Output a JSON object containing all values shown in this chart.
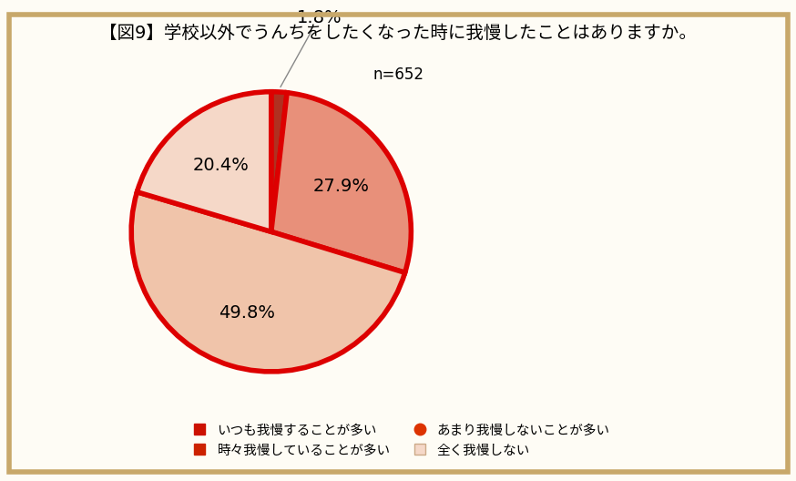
{
  "title_line1": "【図9】学校以外でうんちをしたくなった時に我慢したことはありますか。",
  "title_line2": "n=652",
  "slices": [
    1.8,
    27.9,
    49.8,
    20.4
  ],
  "slice_labels": [
    "1.8%",
    "27.9%",
    "49.8%",
    "20.4%"
  ],
  "colors": [
    "#b03020",
    "#e8907a",
    "#f0c4aa",
    "#f5d8c8"
  ],
  "edge_color": "#dd0000",
  "edge_width": 4.0,
  "legend_labels": [
    "いつも我慢することが多い",
    "時々我慢していることが多い",
    "あまり我慢しないことが多い",
    "全く我慢しない"
  ],
  "legend_colors": [
    "#cc1100",
    "#cc2200",
    "#dd3300",
    "#f5d8c8"
  ],
  "background_color": "#fefcf5",
  "border_color": "#c8a86a",
  "startangle": 90,
  "label_fontsize": 14,
  "title_fontsize": 14,
  "subtitle_fontsize": 12,
  "legend_fontsize": 10.5
}
